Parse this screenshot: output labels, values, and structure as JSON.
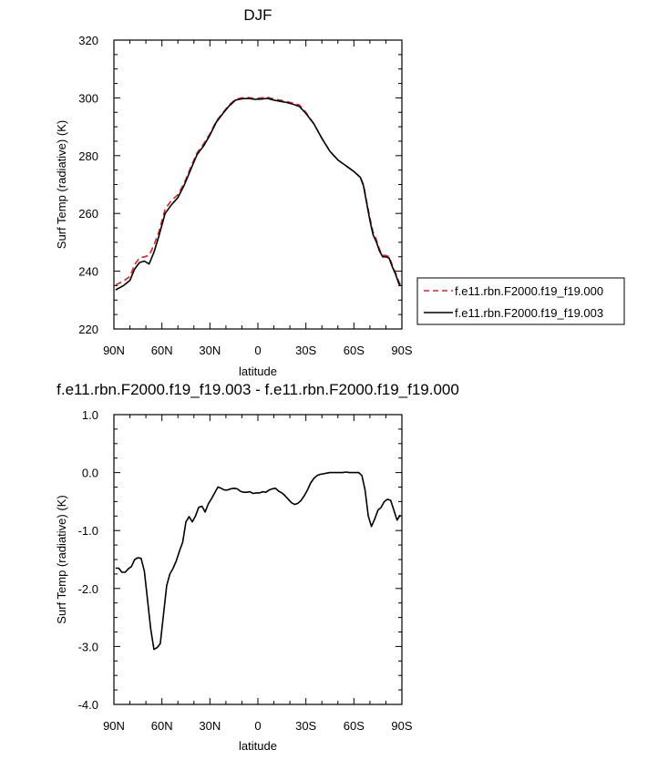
{
  "chart_data": [
    {
      "type": "line",
      "title": "DJF",
      "xlabel": "latitude",
      "ylabel": "Surf Temp (radiative) (K)",
      "xlim": [
        90,
        -90
      ],
      "ylim": [
        220,
        320
      ],
      "x_tick_values": [
        90,
        60,
        30,
        0,
        -30,
        -60,
        -90
      ],
      "x_tick_labels": [
        "90N",
        "60N",
        "30N",
        "0",
        "30S",
        "60S",
        "90S"
      ],
      "y_tick_values": [
        220,
        240,
        260,
        280,
        300,
        320
      ],
      "y_tick_labels": [
        "220",
        "240",
        "260",
        "280",
        "300",
        "320"
      ],
      "legend_position": "right",
      "series": [
        {
          "name": "f.e11.rbn.F2000.f19_f19.000",
          "color": "#d62728",
          "dash": "dashed",
          "x": [
            89,
            84,
            80,
            77,
            74,
            71,
            68,
            65,
            62,
            58,
            54,
            50,
            46,
            42,
            38,
            34,
            30,
            26,
            22,
            18,
            14,
            10,
            6,
            2,
            -2,
            -6,
            -10,
            -14,
            -18,
            -22,
            -26,
            -30,
            -35,
            -40,
            -45,
            -50,
            -55,
            -60,
            -64,
            -66,
            -68,
            -70,
            -72,
            -74,
            -76,
            -78,
            -80,
            -82,
            -84,
            -86,
            -88,
            -89
          ],
          "y": [
            235.2,
            236.6,
            238.2,
            242.3,
            244.6,
            245.0,
            245.5,
            249.0,
            253.5,
            261.5,
            264.5,
            266.5,
            270.5,
            276.0,
            281.0,
            284.0,
            287.5,
            292.0,
            294.8,
            297.5,
            299.5,
            300.0,
            300.1,
            299.8,
            300.0,
            300.2,
            299.6,
            299.2,
            298.7,
            298.2,
            297.5,
            295.0,
            291.0,
            286.0,
            281.5,
            278.5,
            276.5,
            274.5,
            272.5,
            270.0,
            264.0,
            258.5,
            253.5,
            251.0,
            247.5,
            245.5,
            245.5,
            245.0,
            242.0,
            239.5,
            236.5,
            235.5
          ]
        },
        {
          "name": "f.e11.rbn.F2000.f19_f19.003",
          "color": "#000000",
          "dash": "solid",
          "x": [
            89,
            84,
            80,
            77,
            74,
            71,
            68,
            65,
            62,
            58,
            54,
            50,
            46,
            42,
            38,
            34,
            30,
            26,
            22,
            18,
            14,
            10,
            6,
            2,
            -2,
            -6,
            -10,
            -14,
            -18,
            -22,
            -26,
            -30,
            -35,
            -40,
            -45,
            -50,
            -55,
            -60,
            -64,
            -66,
            -68,
            -70,
            -72,
            -74,
            -76,
            -78,
            -80,
            -82,
            -84,
            -86,
            -88,
            -89
          ],
          "y": [
            233.5,
            235.0,
            236.8,
            240.8,
            243.0,
            243.5,
            242.5,
            246.5,
            252.0,
            260.0,
            263.0,
            265.5,
            269.8,
            275.2,
            280.4,
            283.3,
            287.1,
            291.6,
            294.5,
            297.2,
            299.2,
            299.7,
            299.8,
            299.5,
            299.6,
            299.8,
            299.2,
            298.8,
            298.4,
            297.8,
            297.0,
            294.6,
            291.0,
            286.0,
            281.5,
            278.5,
            276.5,
            274.5,
            272.5,
            269.5,
            263.5,
            257.6,
            252.6,
            250.2,
            247.0,
            245.0,
            245.0,
            244.5,
            241.5,
            239.0,
            235.8,
            235.0
          ]
        }
      ]
    },
    {
      "type": "line",
      "title": "f.e11.rbn.F2000.f19_f19.003 - f.e11.rbn.F2000.f19_f19.000",
      "xlabel": "latitude",
      "ylabel": "Surf Temp (radiative) (K)",
      "xlim": [
        90,
        -90
      ],
      "ylim": [
        -4.0,
        1.0
      ],
      "x_tick_values": [
        90,
        60,
        30,
        0,
        -30,
        -60,
        -90
      ],
      "x_tick_labels": [
        "90N",
        "60N",
        "30N",
        "0",
        "30S",
        "60S",
        "90S"
      ],
      "y_tick_values": [
        -4.0,
        -3.0,
        -2.0,
        -1.0,
        0.0,
        1.0
      ],
      "y_tick_labels": [
        "-4.0",
        "-3.0",
        "-2.0",
        "-1.0",
        "0.0",
        "1.0"
      ],
      "series": [
        {
          "color": "#000000",
          "dash": "solid",
          "x": [
            89,
            87,
            85,
            83,
            81,
            79,
            77,
            75,
            73,
            71,
            69,
            67,
            65,
            63,
            61,
            59,
            57,
            55,
            53,
            51,
            49,
            47,
            45,
            43,
            41,
            39,
            37,
            35,
            33,
            31,
            29,
            27,
            25,
            23,
            21,
            19,
            17,
            15,
            13,
            11,
            9,
            7,
            5,
            3,
            1,
            -1,
            -3,
            -5,
            -7,
            -9,
            -11,
            -13,
            -15,
            -17,
            -19,
            -21,
            -23,
            -25,
            -27,
            -29,
            -31,
            -33,
            -35,
            -37,
            -39,
            -41,
            -43,
            -45,
            -47,
            -49,
            -51,
            -53,
            -55,
            -57,
            -59,
            -61,
            -63,
            -65,
            -67,
            -69,
            -71,
            -73,
            -75,
            -77,
            -79,
            -81,
            -83,
            -85,
            -87,
            -89
          ],
          "y": [
            -1.65,
            -1.65,
            -1.72,
            -1.72,
            -1.66,
            -1.62,
            -1.5,
            -1.47,
            -1.48,
            -1.7,
            -2.2,
            -2.7,
            -3.05,
            -3.02,
            -2.95,
            -2.45,
            -1.95,
            -1.75,
            -1.65,
            -1.52,
            -1.35,
            -1.2,
            -0.85,
            -0.76,
            -0.85,
            -0.75,
            -0.6,
            -0.58,
            -0.68,
            -0.54,
            -0.45,
            -0.35,
            -0.25,
            -0.27,
            -0.3,
            -0.3,
            -0.28,
            -0.27,
            -0.28,
            -0.32,
            -0.34,
            -0.34,
            -0.33,
            -0.36,
            -0.35,
            -0.35,
            -0.33,
            -0.34,
            -0.3,
            -0.28,
            -0.27,
            -0.32,
            -0.35,
            -0.4,
            -0.46,
            -0.52,
            -0.55,
            -0.53,
            -0.48,
            -0.4,
            -0.3,
            -0.18,
            -0.1,
            -0.05,
            -0.03,
            -0.02,
            -0.01,
            0.0,
            0.0,
            0.0,
            0.0,
            0.0,
            0.01,
            0.0,
            0.0,
            0.0,
            0.0,
            -0.05,
            -0.3,
            -0.75,
            -0.93,
            -0.8,
            -0.65,
            -0.6,
            -0.5,
            -0.46,
            -0.48,
            -0.65,
            -0.82,
            -0.73
          ]
        }
      ]
    }
  ]
}
